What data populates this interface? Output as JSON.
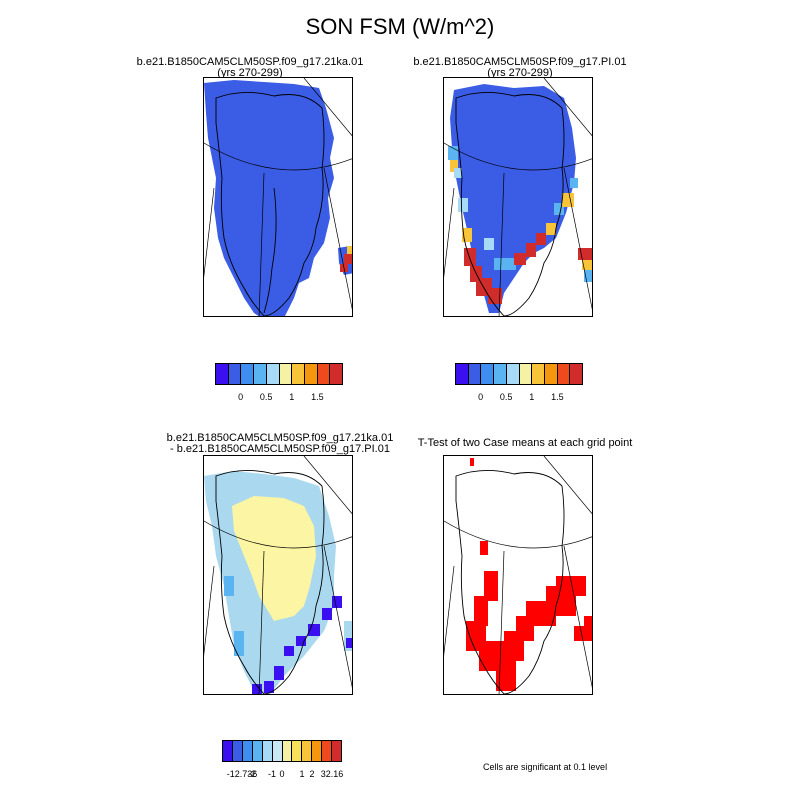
{
  "title": "SON FSM (W/m^2)",
  "panels": {
    "top_left": {
      "line1": "b.e21.B1850CAM5CLM50SP.f09_g17.21ka.01",
      "line2": "(yrs 270-299)"
    },
    "top_right": {
      "line1": "b.e21.B1850CAM5CLM50SP.f09_g17.PI.01",
      "line2": "(yrs 270-299)"
    },
    "bottom_left": {
      "line1": "b.e21.B1850CAM5CLM50SP.f09_g17.21ka.01",
      "line2": "- b.e21.B1850CAM5CLM50SP.f09_g17.PI.01"
    },
    "bottom_right": {
      "line1": "T-Test of two Case means at each grid point"
    }
  },
  "colorbar_main": {
    "colors": [
      "#3a0ff0",
      "#3b5ce4",
      "#3d8ef0",
      "#5ab4f2",
      "#a6daf6",
      "#f5f2a6",
      "#f7c43a",
      "#f6960f",
      "#ee4a1e",
      "#d02c2c"
    ],
    "labels": [
      "0",
      "0.5",
      "1",
      "1.5"
    ]
  },
  "colorbar_diff": {
    "colors": [
      "#3a0ff0",
      "#3b5ce4",
      "#3d8ef0",
      "#5ab4f2",
      "#a6daf6",
      "#c8e8f6",
      "#f5f2a6",
      "#f7e05a",
      "#f7c43a",
      "#f6960f",
      "#ee4a1e",
      "#d02c2c"
    ],
    "labels": [
      "-12.736",
      "-2",
      "-1",
      "0",
      "1",
      "2",
      "32.16"
    ]
  },
  "significance_note": "Cells are significant at 0.1 level",
  "colors": {
    "ice_blue": "#3b5ce4",
    "diff_yellow": "#fbf5a4",
    "diff_light_blue": "#aad8ef",
    "signif_red": "#ff0000",
    "warm_red": "#d02c2c"
  }
}
